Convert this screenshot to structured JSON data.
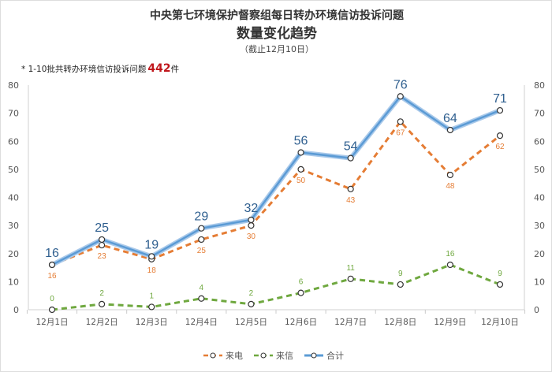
{
  "chart_data": {
    "type": "line",
    "title": "中央第七环境保护督察组每日转办环境信访投诉问题",
    "subtitle": "数量变化趋势",
    "date_note": "（截止12月10日）",
    "annotation": {
      "prefix": "* 1-10批共转办环境信访投诉问题",
      "value": "442",
      "suffix": "件"
    },
    "categories": [
      "12月1日",
      "12月2日",
      "12月3日",
      "12月4日",
      "12月5日",
      "12月6日",
      "12月7日",
      "12月8日",
      "12月9日",
      "12月10日"
    ],
    "ylim": [
      0,
      80
    ],
    "yticks": [
      0,
      10,
      20,
      30,
      40,
      50,
      60,
      70,
      80
    ],
    "grid": false,
    "legend_position": "bottom",
    "series": [
      {
        "name": "来电",
        "values": [
          16,
          23,
          18,
          25,
          30,
          50,
          43,
          67,
          48,
          62
        ],
        "color": "#e57d35",
        "style": "dashed",
        "label_pos": "below"
      },
      {
        "name": "来信",
        "values": [
          0,
          2,
          1,
          4,
          2,
          6,
          11,
          9,
          16,
          9
        ],
        "color": "#6fa83f",
        "style": "dashed",
        "label_pos": "above"
      },
      {
        "name": "合计",
        "values": [
          16,
          25,
          19,
          29,
          32,
          56,
          54,
          76,
          64,
          71
        ],
        "color": "#5b9bd5",
        "style": "solid",
        "label_pos": "above"
      }
    ]
  }
}
